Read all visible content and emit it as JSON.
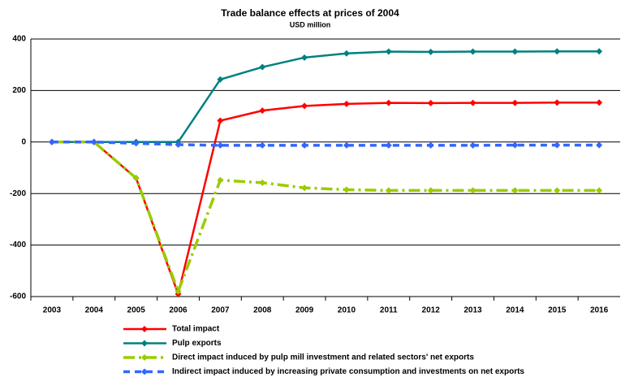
{
  "chart_data": {
    "type": "line",
    "title": "Trade balance effects at prices of 2004",
    "subtitle": "USD million",
    "categories": [
      "2003",
      "2004",
      "2005",
      "2006",
      "2007",
      "2008",
      "2009",
      "2010",
      "2011",
      "2012",
      "2013",
      "2014",
      "2015",
      "2016"
    ],
    "series": [
      {
        "name": "Total impact",
        "color": "#ff0000",
        "values": [
          0,
          0,
          -140,
          -590,
          83,
          122,
          140,
          148,
          152,
          151,
          152,
          152,
          153,
          153
        ]
      },
      {
        "name": "Pulp exports",
        "color": "#008080",
        "values": [
          0,
          0,
          0,
          0,
          243,
          291,
          328,
          344,
          351,
          350,
          351,
          351,
          352,
          352
        ]
      },
      {
        "name": "Direct impact induced by pulp mill investment and related sectors' net exports",
        "color": "#99cc00",
        "values": [
          0,
          0,
          -140,
          -580,
          -148,
          -158,
          -178,
          -185,
          -188,
          -188,
          -188,
          -188,
          -188,
          -188
        ]
      },
      {
        "name": "Indirect impact induced by increasing private consumption and investments on net exports",
        "color": "#3366ff",
        "values": [
          0,
          0,
          -5,
          -10,
          -13,
          -13,
          -13,
          -13,
          -13,
          -13,
          -13,
          -12,
          -12,
          -12
        ]
      }
    ],
    "ylim": [
      -600,
      400
    ],
    "yticks": [
      400,
      200,
      0,
      -200,
      -400,
      -600
    ],
    "grid": true
  }
}
